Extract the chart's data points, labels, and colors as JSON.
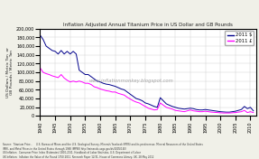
{
  "title": "Inflation Adjusted Annual Titanium Price in US Dollar and GB Pounds",
  "ylabel": "US Dollars / Metric Ton  or\nGB Pounds / Metric Ton",
  "watermark": "www.inflationmonkey.blogspot.com",
  "legend": [
    "2011 $",
    "2011 £"
  ],
  "line_colors": [
    "#00008B",
    "#FF00FF"
  ],
  "ylim": [
    0,
    200000
  ],
  "yticks": [
    0,
    20000,
    40000,
    60000,
    80000,
    100000,
    120000,
    140000,
    160000,
    180000,
    200000
  ],
  "xlim": [
    1940,
    2012
  ],
  "xticks": [
    1940,
    1945,
    1950,
    1955,
    1960,
    1965,
    1970,
    1975,
    1980,
    1985,
    1990,
    1995,
    2000,
    2005,
    2010
  ],
  "source_text": "Source:  Titanium Price -     U.S. Bureau of Mines and the U.S. Geological Survey, Minerals Yearbook (MYIS) and its predecessor, Mineral Resources of the United States\n(MR), and Metal Prices in the United States through 1998 (MP98) http://minerals.usgs.gov/ds/2005/140/\nUS Inflation:  Consumer Price Index (Estimates) 1800-2011. Handbook of Labor Statistics, U.S. Department of Labor\nUK Inflation:  Inflation the Value of the Pound 1750-2011. Research Paper 12/31, House of Commons Library, UK. 28 May 2012",
  "usd_years": [
    1940,
    1941,
    1942,
    1943,
    1944,
    1945,
    1946,
    1947,
    1948,
    1949,
    1950,
    1951,
    1952,
    1953,
    1954,
    1955,
    1956,
    1957,
    1958,
    1959,
    1960,
    1961,
    1962,
    1963,
    1964,
    1965,
    1966,
    1967,
    1968,
    1969,
    1970,
    1971,
    1972,
    1973,
    1974,
    1975,
    1976,
    1977,
    1978,
    1979,
    1980,
    1981,
    1982,
    1983,
    1984,
    1985,
    1986,
    1987,
    1988,
    1989,
    1990,
    1991,
    1992,
    1993,
    1994,
    1995,
    1996,
    1997,
    1998,
    1999,
    2000,
    2001,
    2002,
    2003,
    2004,
    2005,
    2006,
    2007,
    2008,
    2009,
    2010,
    2011
  ],
  "usd_values": [
    185000,
    175000,
    160000,
    155000,
    150000,
    148000,
    142000,
    150000,
    142000,
    148000,
    142000,
    148000,
    142000,
    105000,
    100000,
    95000,
    95000,
    90000,
    85000,
    80000,
    78000,
    75000,
    73000,
    72000,
    70000,
    68000,
    65000,
    62000,
    60000,
    55000,
    50000,
    45000,
    40000,
    38000,
    35000,
    30000,
    28000,
    25000,
    22000,
    20000,
    42000,
    35000,
    28000,
    25000,
    22000,
    20000,
    18000,
    17000,
    16000,
    17000,
    18000,
    17000,
    15000,
    14000,
    14000,
    15000,
    14000,
    13000,
    12000,
    11000,
    10000,
    9500,
    9000,
    9000,
    10000,
    11000,
    13000,
    15000,
    22000,
    17000,
    20000,
    12000
  ],
  "gbp_years": [
    1940,
    1941,
    1942,
    1943,
    1944,
    1945,
    1946,
    1947,
    1948,
    1949,
    1950,
    1951,
    1952,
    1953,
    1954,
    1955,
    1956,
    1957,
    1958,
    1959,
    1960,
    1961,
    1962,
    1963,
    1964,
    1965,
    1966,
    1967,
    1968,
    1969,
    1970,
    1971,
    1972,
    1973,
    1974,
    1975,
    1976,
    1977,
    1978,
    1979,
    1980,
    1981,
    1982,
    1983,
    1984,
    1985,
    1986,
    1987,
    1988,
    1989,
    1990,
    1991,
    1992,
    1993,
    1994,
    1995,
    1996,
    1997,
    1998,
    1999,
    2000,
    2001,
    2002,
    2003,
    2004,
    2005,
    2006,
    2007,
    2008,
    2009,
    2010,
    2011
  ],
  "gbp_values": [
    110000,
    100000,
    97000,
    95000,
    92000,
    90000,
    88000,
    95000,
    87000,
    82000,
    78000,
    80000,
    78000,
    80000,
    78000,
    75000,
    75000,
    72000,
    67000,
    65000,
    62000,
    60000,
    58000,
    57000,
    55000,
    55000,
    52000,
    50000,
    48000,
    43000,
    39000,
    35000,
    32000,
    30000,
    26000,
    22000,
    18000,
    16000,
    14000,
    15000,
    30000,
    25000,
    20000,
    18000,
    16000,
    13000,
    12000,
    11000,
    10000,
    12000,
    14000,
    12000,
    11000,
    10000,
    10000,
    11000,
    10000,
    9000,
    8500,
    8000,
    7500,
    7000,
    7000,
    7000,
    7500,
    8000,
    9000,
    10000,
    13000,
    8000,
    10000,
    8000
  ],
  "background_color": "#f0f0e8",
  "plot_bg": "#ffffff"
}
